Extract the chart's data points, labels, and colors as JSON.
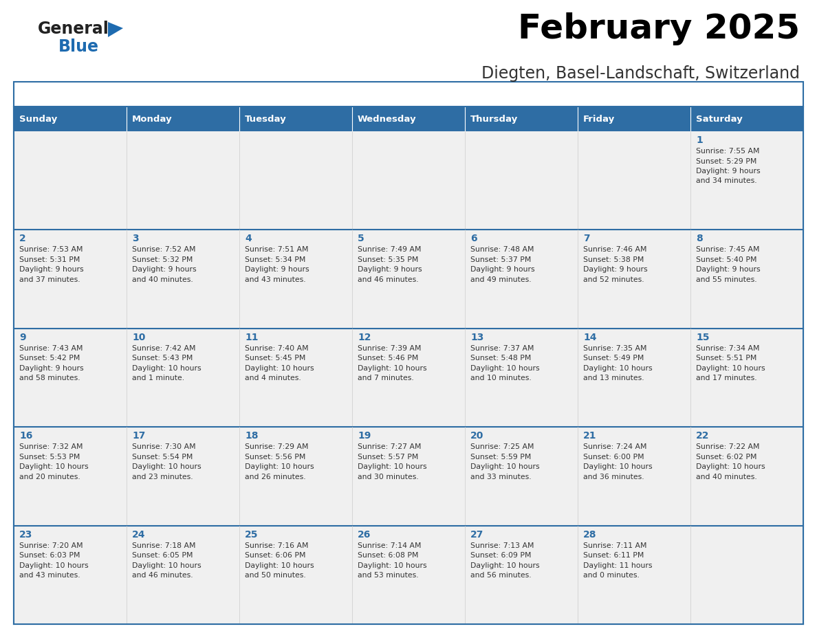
{
  "title": "February 2025",
  "subtitle": "Diegten, Basel-Landschaft, Switzerland",
  "header_bg": "#2E6DA4",
  "header_text": "#FFFFFF",
  "cell_bg": "#F0F0F0",
  "cell_border_color": "#CCCCCC",
  "row_separator_color": "#2E6DA4",
  "col_separator_color": "#CCCCCC",
  "day_number_color": "#2E6DA4",
  "text_color": "#333333",
  "outer_border_color": "#2E6DA4",
  "days_of_week": [
    "Sunday",
    "Monday",
    "Tuesday",
    "Wednesday",
    "Thursday",
    "Friday",
    "Saturday"
  ],
  "calendar_data": [
    [
      null,
      null,
      null,
      null,
      null,
      null,
      {
        "day": "1",
        "sunrise": "7:55 AM",
        "sunset": "5:29 PM",
        "daylight_line1": "9 hours",
        "daylight_line2": "and 34 minutes."
      }
    ],
    [
      {
        "day": "2",
        "sunrise": "7:53 AM",
        "sunset": "5:31 PM",
        "daylight_line1": "9 hours",
        "daylight_line2": "and 37 minutes."
      },
      {
        "day": "3",
        "sunrise": "7:52 AM",
        "sunset": "5:32 PM",
        "daylight_line1": "9 hours",
        "daylight_line2": "and 40 minutes."
      },
      {
        "day": "4",
        "sunrise": "7:51 AM",
        "sunset": "5:34 PM",
        "daylight_line1": "9 hours",
        "daylight_line2": "and 43 minutes."
      },
      {
        "day": "5",
        "sunrise": "7:49 AM",
        "sunset": "5:35 PM",
        "daylight_line1": "9 hours",
        "daylight_line2": "and 46 minutes."
      },
      {
        "day": "6",
        "sunrise": "7:48 AM",
        "sunset": "5:37 PM",
        "daylight_line1": "9 hours",
        "daylight_line2": "and 49 minutes."
      },
      {
        "day": "7",
        "sunrise": "7:46 AM",
        "sunset": "5:38 PM",
        "daylight_line1": "9 hours",
        "daylight_line2": "and 52 minutes."
      },
      {
        "day": "8",
        "sunrise": "7:45 AM",
        "sunset": "5:40 PM",
        "daylight_line1": "9 hours",
        "daylight_line2": "and 55 minutes."
      }
    ],
    [
      {
        "day": "9",
        "sunrise": "7:43 AM",
        "sunset": "5:42 PM",
        "daylight_line1": "9 hours",
        "daylight_line2": "and 58 minutes."
      },
      {
        "day": "10",
        "sunrise": "7:42 AM",
        "sunset": "5:43 PM",
        "daylight_line1": "10 hours",
        "daylight_line2": "and 1 minute."
      },
      {
        "day": "11",
        "sunrise": "7:40 AM",
        "sunset": "5:45 PM",
        "daylight_line1": "10 hours",
        "daylight_line2": "and 4 minutes."
      },
      {
        "day": "12",
        "sunrise": "7:39 AM",
        "sunset": "5:46 PM",
        "daylight_line1": "10 hours",
        "daylight_line2": "and 7 minutes."
      },
      {
        "day": "13",
        "sunrise": "7:37 AM",
        "sunset": "5:48 PM",
        "daylight_line1": "10 hours",
        "daylight_line2": "and 10 minutes."
      },
      {
        "day": "14",
        "sunrise": "7:35 AM",
        "sunset": "5:49 PM",
        "daylight_line1": "10 hours",
        "daylight_line2": "and 13 minutes."
      },
      {
        "day": "15",
        "sunrise": "7:34 AM",
        "sunset": "5:51 PM",
        "daylight_line1": "10 hours",
        "daylight_line2": "and 17 minutes."
      }
    ],
    [
      {
        "day": "16",
        "sunrise": "7:32 AM",
        "sunset": "5:53 PM",
        "daylight_line1": "10 hours",
        "daylight_line2": "and 20 minutes."
      },
      {
        "day": "17",
        "sunrise": "7:30 AM",
        "sunset": "5:54 PM",
        "daylight_line1": "10 hours",
        "daylight_line2": "and 23 minutes."
      },
      {
        "day": "18",
        "sunrise": "7:29 AM",
        "sunset": "5:56 PM",
        "daylight_line1": "10 hours",
        "daylight_line2": "and 26 minutes."
      },
      {
        "day": "19",
        "sunrise": "7:27 AM",
        "sunset": "5:57 PM",
        "daylight_line1": "10 hours",
        "daylight_line2": "and 30 minutes."
      },
      {
        "day": "20",
        "sunrise": "7:25 AM",
        "sunset": "5:59 PM",
        "daylight_line1": "10 hours",
        "daylight_line2": "and 33 minutes."
      },
      {
        "day": "21",
        "sunrise": "7:24 AM",
        "sunset": "6:00 PM",
        "daylight_line1": "10 hours",
        "daylight_line2": "and 36 minutes."
      },
      {
        "day": "22",
        "sunrise": "7:22 AM",
        "sunset": "6:02 PM",
        "daylight_line1": "10 hours",
        "daylight_line2": "and 40 minutes."
      }
    ],
    [
      {
        "day": "23",
        "sunrise": "7:20 AM",
        "sunset": "6:03 PM",
        "daylight_line1": "10 hours",
        "daylight_line2": "and 43 minutes."
      },
      {
        "day": "24",
        "sunrise": "7:18 AM",
        "sunset": "6:05 PM",
        "daylight_line1": "10 hours",
        "daylight_line2": "and 46 minutes."
      },
      {
        "day": "25",
        "sunrise": "7:16 AM",
        "sunset": "6:06 PM",
        "daylight_line1": "10 hours",
        "daylight_line2": "and 50 minutes."
      },
      {
        "day": "26",
        "sunrise": "7:14 AM",
        "sunset": "6:08 PM",
        "daylight_line1": "10 hours",
        "daylight_line2": "and 53 minutes."
      },
      {
        "day": "27",
        "sunrise": "7:13 AM",
        "sunset": "6:09 PM",
        "daylight_line1": "10 hours",
        "daylight_line2": "and 56 minutes."
      },
      {
        "day": "28",
        "sunrise": "7:11 AM",
        "sunset": "6:11 PM",
        "daylight_line1": "11 hours",
        "daylight_line2": "and 0 minutes."
      },
      null
    ]
  ],
  "logo_text1": "General",
  "logo_text2": "Blue",
  "logo_color1": "#222222",
  "logo_color2": "#1E6BB0",
  "triangle_color": "#1E6BB0"
}
